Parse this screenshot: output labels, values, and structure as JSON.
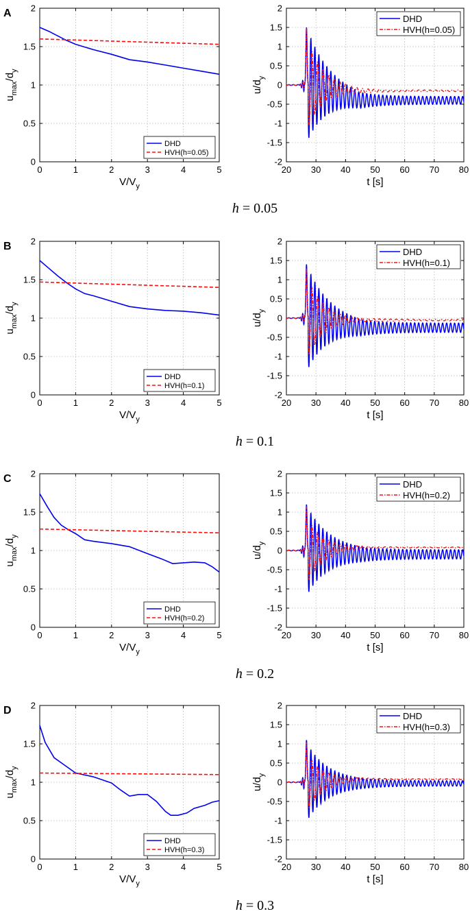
{
  "figure": {
    "colors": {
      "dhd": "#0000ee",
      "hvh": "#ee1111"
    },
    "panels": [
      {
        "letter": "A",
        "caption_var": "h",
        "caption_val": "0.05",
        "h": 0.05,
        "left": {
          "ylabel": "u",
          "ylabel_sub": "max",
          "ylabel_tail": "/d",
          "ylabel_sub2": "y",
          "xlabel": "V/V",
          "xlabel_sub": "y",
          "legend": [
            "DHD",
            "HVH(h=0.05)"
          ]
        },
        "right": {
          "ylabel": "u/d",
          "ylabel_sub": "y",
          "xlabel": "t [s]",
          "legend": [
            "DHD",
            "HVH(h=0.05)"
          ]
        }
      },
      {
        "letter": "B",
        "caption_var": "h",
        "caption_val": "0.1",
        "h": 0.1,
        "left": {
          "ylabel": "u",
          "ylabel_sub": "max",
          "ylabel_tail": "/d",
          "ylabel_sub2": "y",
          "xlabel": "V/V",
          "xlabel_sub": "y",
          "legend": [
            "DHD",
            "HVH(h=0.1)"
          ]
        },
        "right": {
          "ylabel": "u/d",
          "ylabel_sub": "y",
          "xlabel": "t [s]",
          "legend": [
            "DHD",
            "HVH(h=0.1)"
          ]
        }
      },
      {
        "letter": "C",
        "caption_var": "h",
        "caption_val": "0.2",
        "h": 0.2,
        "left": {
          "ylabel": "u",
          "ylabel_sub": "max",
          "ylabel_tail": "/d",
          "ylabel_sub2": "y",
          "xlabel": "V/V",
          "xlabel_sub": "y",
          "legend": [
            "DHD",
            "HVH(h=0.2)"
          ]
        },
        "right": {
          "ylabel": "u/d",
          "ylabel_sub": "y",
          "xlabel": "t [s]",
          "legend": [
            "DHD",
            "HVH(h=0.2)"
          ]
        }
      },
      {
        "letter": "D",
        "caption_var": "h",
        "caption_val": "0.3",
        "h": 0.3,
        "left": {
          "ylabel": "u",
          "ylabel_sub": "max",
          "ylabel_tail": "/d",
          "ylabel_sub2": "y",
          "xlabel": "V/V",
          "xlabel_sub": "y",
          "legend": [
            "DHD",
            "HVH(h=0.3)"
          ]
        },
        "right": {
          "ylabel": "u/d",
          "ylabel_sub": "y",
          "xlabel": "t [s]",
          "legend": [
            "DHD",
            "HVH(h=0.3)"
          ]
        }
      }
    ]
  },
  "chart_data": [
    {
      "type": "line",
      "panel": "A-left",
      "xlim": [
        0,
        5
      ],
      "ylim": [
        0,
        2
      ],
      "xticks": [
        0,
        1,
        2,
        3,
        4,
        5
      ],
      "yticks": [
        0,
        0.5,
        1,
        1.5,
        2
      ],
      "grid": true,
      "legend_position": "bottom-right",
      "series": [
        {
          "name": "DHD",
          "style": "solid",
          "x": [
            0,
            0.25,
            0.5,
            0.75,
            1,
            1.5,
            2,
            2.5,
            3,
            3.5,
            4,
            4.5,
            5
          ],
          "y": [
            1.75,
            1.7,
            1.64,
            1.58,
            1.53,
            1.46,
            1.4,
            1.33,
            1.3,
            1.26,
            1.22,
            1.18,
            1.14
          ]
        },
        {
          "name": "HVH(h=0.05)",
          "style": "dashed",
          "x": [
            0,
            5
          ],
          "y": [
            1.6,
            1.53
          ]
        }
      ]
    },
    {
      "type": "line",
      "panel": "A-right",
      "xlim": [
        20,
        80
      ],
      "ylim": [
        -2,
        2
      ],
      "xticks": [
        20,
        30,
        40,
        50,
        60,
        70,
        80
      ],
      "yticks": [
        -2,
        -1.5,
        -1,
        -0.5,
        0,
        0.5,
        1,
        1.5,
        2
      ],
      "grid": true,
      "legend_position": "top-right",
      "series": [
        {
          "name": "DHD",
          "style": "solid",
          "signal": {
            "peak_max": 1.5,
            "peak_min": -1.4,
            "trough": -1.0,
            "amp_end": 0.1,
            "drift_end": -0.4,
            "osc_period": 1.35
          }
        },
        {
          "name": "HVH(h=0.05)",
          "style": "dashdot",
          "signal": {
            "peak_max": 1.5,
            "peak_min": -1.1,
            "amp_end": 0.02,
            "drift_end": -0.15,
            "osc_period": 1.9
          }
        }
      ]
    },
    {
      "type": "line",
      "panel": "B-left",
      "xlim": [
        0,
        5
      ],
      "ylim": [
        0,
        2
      ],
      "xticks": [
        0,
        1,
        2,
        3,
        4,
        5
      ],
      "yticks": [
        0,
        0.5,
        1,
        1.5,
        2
      ],
      "grid": true,
      "legend_position": "bottom-right",
      "series": [
        {
          "name": "DHD",
          "style": "solid",
          "x": [
            0,
            0.25,
            0.5,
            0.75,
            1,
            1.25,
            1.5,
            2,
            2.5,
            3,
            3.5,
            4,
            4.5,
            5
          ],
          "y": [
            1.75,
            1.65,
            1.55,
            1.46,
            1.38,
            1.32,
            1.29,
            1.22,
            1.15,
            1.12,
            1.1,
            1.09,
            1.07,
            1.04
          ]
        },
        {
          "name": "HVH(h=0.1)",
          "style": "dashed",
          "x": [
            0,
            5
          ],
          "y": [
            1.47,
            1.4
          ]
        }
      ]
    },
    {
      "type": "line",
      "panel": "B-right",
      "xlim": [
        20,
        80
      ],
      "ylim": [
        -2,
        2
      ],
      "xticks": [
        20,
        30,
        40,
        50,
        60,
        70,
        80
      ],
      "yticks": [
        -2,
        -1.5,
        -1,
        -0.5,
        0,
        0.5,
        1,
        1.5,
        2
      ],
      "grid": true,
      "legend_position": "top-right",
      "series": [
        {
          "name": "DHD",
          "style": "solid",
          "signal": {
            "peak_max": 1.4,
            "peak_min": -1.3,
            "trough": -0.85,
            "amp_end": 0.12,
            "drift_end": -0.25,
            "osc_period": 1.35
          }
        },
        {
          "name": "HVH(h=0.1)",
          "style": "dashdot",
          "signal": {
            "peak_max": 1.3,
            "peak_min": -1.0,
            "amp_end": 0.02,
            "drift_end": -0.05,
            "osc_period": 1.9
          }
        }
      ]
    },
    {
      "type": "line",
      "panel": "C-left",
      "xlim": [
        0,
        5
      ],
      "ylim": [
        0,
        2
      ],
      "xticks": [
        0,
        1,
        2,
        3,
        4,
        5
      ],
      "yticks": [
        0,
        0.5,
        1,
        1.5,
        2
      ],
      "grid": true,
      "legend_position": "bottom-right",
      "series": [
        {
          "name": "DHD",
          "style": "solid",
          "x": [
            0,
            0.2,
            0.4,
            0.6,
            0.8,
            1,
            1.25,
            1.5,
            2,
            2.5,
            3,
            3.4,
            3.7,
            4,
            4.3,
            4.6,
            4.8,
            5
          ],
          "y": [
            1.74,
            1.58,
            1.43,
            1.33,
            1.27,
            1.22,
            1.14,
            1.12,
            1.09,
            1.05,
            0.96,
            0.89,
            0.83,
            0.84,
            0.85,
            0.84,
            0.79,
            0.72
          ]
        },
        {
          "name": "HVH(h=0.2)",
          "style": "dashed",
          "x": [
            0,
            5
          ],
          "y": [
            1.28,
            1.23
          ]
        }
      ]
    },
    {
      "type": "line",
      "panel": "C-right",
      "xlim": [
        20,
        80
      ],
      "ylim": [
        -2,
        2
      ],
      "xticks": [
        20,
        30,
        40,
        50,
        60,
        70,
        80
      ],
      "yticks": [
        -2,
        -1.5,
        -1,
        -0.5,
        0,
        0.5,
        1,
        1.5,
        2
      ],
      "grid": true,
      "legend_position": "top-right",
      "series": [
        {
          "name": "DHD",
          "style": "solid",
          "signal": {
            "peak_max": 1.2,
            "peak_min": -1.1,
            "trough": -0.55,
            "amp_end": 0.12,
            "drift_end": -0.1,
            "osc_period": 1.35
          }
        },
        {
          "name": "HVH(h=0.2)",
          "style": "dashdot",
          "signal": {
            "peak_max": 1.15,
            "peak_min": -0.8,
            "amp_end": 0.01,
            "drift_end": 0.08,
            "osc_period": 1.9
          }
        }
      ]
    },
    {
      "type": "line",
      "panel": "D-left",
      "xlim": [
        0,
        5
      ],
      "ylim": [
        0,
        2
      ],
      "xticks": [
        0,
        1,
        2,
        3,
        4,
        5
      ],
      "yticks": [
        0,
        0.5,
        1,
        1.5,
        2
      ],
      "grid": true,
      "legend_position": "bottom-right",
      "series": [
        {
          "name": "DHD",
          "style": "solid",
          "x": [
            0,
            0.15,
            0.4,
            0.7,
            1.0,
            1.5,
            2.0,
            2.25,
            2.5,
            2.75,
            3.0,
            3.25,
            3.5,
            3.65,
            3.85,
            4.1,
            4.3,
            4.6,
            4.8,
            5
          ],
          "y": [
            1.74,
            1.52,
            1.32,
            1.22,
            1.12,
            1.07,
            0.99,
            0.9,
            0.82,
            0.84,
            0.84,
            0.75,
            0.62,
            0.57,
            0.57,
            0.6,
            0.66,
            0.7,
            0.74,
            0.76
          ]
        },
        {
          "name": "HVH(h=0.3)",
          "style": "dashed",
          "x": [
            0,
            5
          ],
          "y": [
            1.12,
            1.1
          ]
        }
      ]
    },
    {
      "type": "line",
      "panel": "D-right",
      "xlim": [
        20,
        80
      ],
      "ylim": [
        -2,
        2
      ],
      "xticks": [
        20,
        30,
        40,
        50,
        60,
        70,
        80
      ],
      "yticks": [
        -2,
        -1.5,
        -1,
        -0.5,
        0,
        0.5,
        1,
        1.5,
        2
      ],
      "grid": true,
      "legend_position": "top-right",
      "series": [
        {
          "name": "DHD",
          "style": "solid",
          "signal": {
            "peak_max": 1.1,
            "peak_min": -0.95,
            "trough": -0.4,
            "amp_end": 0.07,
            "drift_end": -0.03,
            "osc_period": 1.35
          }
        },
        {
          "name": "HVH(h=0.3)",
          "style": "dashdot",
          "signal": {
            "peak_max": 1.05,
            "peak_min": -0.7,
            "amp_end": 0.01,
            "drift_end": 0.08,
            "osc_period": 1.9
          }
        }
      ]
    }
  ]
}
